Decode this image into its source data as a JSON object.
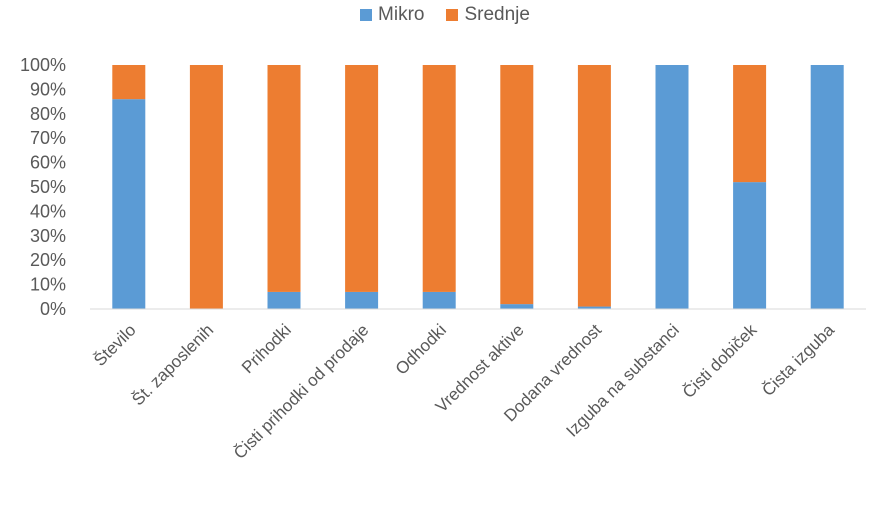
{
  "chart_data": {
    "type": "bar",
    "stacked": true,
    "percent": true,
    "categories": [
      "Število",
      "Št. zaposlenih",
      "Prihodki",
      "Čisti prihodki od prodaje",
      "Odhodki",
      "Vrednost aktive",
      "Dodana vrednost",
      "Izguba na substanci",
      "Čisti dobiček",
      "Čista izguba"
    ],
    "series": [
      {
        "name": "Mikro",
        "color": "#5B9BD5",
        "values": [
          86,
          0,
          7,
          7,
          7,
          2,
          1,
          100,
          52,
          100
        ]
      },
      {
        "name": "Srednje",
        "color": "#ED7D31",
        "values": [
          14,
          100,
          93,
          93,
          93,
          98,
          99,
          0,
          48,
          0
        ]
      }
    ],
    "yticks": [
      "0%",
      "10%",
      "20%",
      "30%",
      "40%",
      "50%",
      "60%",
      "70%",
      "80%",
      "90%",
      "100%"
    ],
    "ylim": [
      0,
      100
    ],
    "legend_position": "top-center",
    "grid": false
  }
}
